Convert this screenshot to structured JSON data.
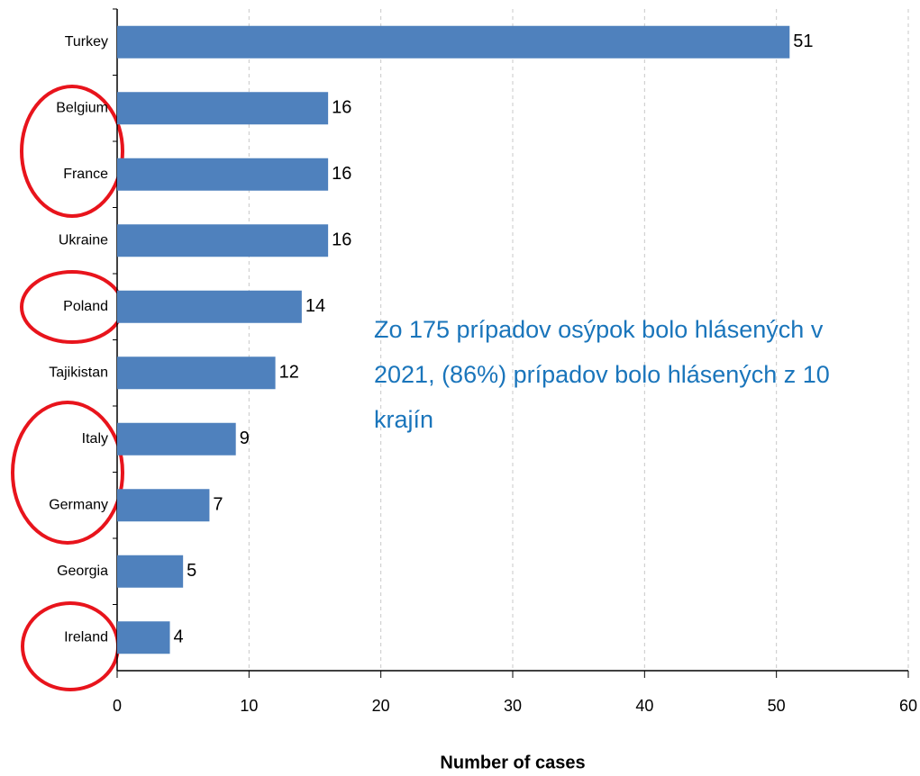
{
  "chart_data": {
    "type": "barh",
    "categories": [
      "Turkey",
      "Belgium",
      "France",
      "Ukraine",
      "Poland",
      "Tajikistan",
      "Italy",
      "Germany",
      "Georgia",
      "Ireland"
    ],
    "values": [
      51,
      16,
      16,
      16,
      14,
      12,
      9,
      7,
      5,
      4
    ],
    "color": "#4f81bd",
    "xlim": [
      0,
      60
    ],
    "xticks": [
      0,
      10,
      20,
      30,
      40,
      50,
      60
    ],
    "grid": true,
    "xlabel": "Number of cases",
    "annotation": [
      "Zo 175 prípadov osýpok bolo hlásených v",
      "2021, (86%) prípadov bolo hlásených  z 10",
      "krajín"
    ]
  }
}
